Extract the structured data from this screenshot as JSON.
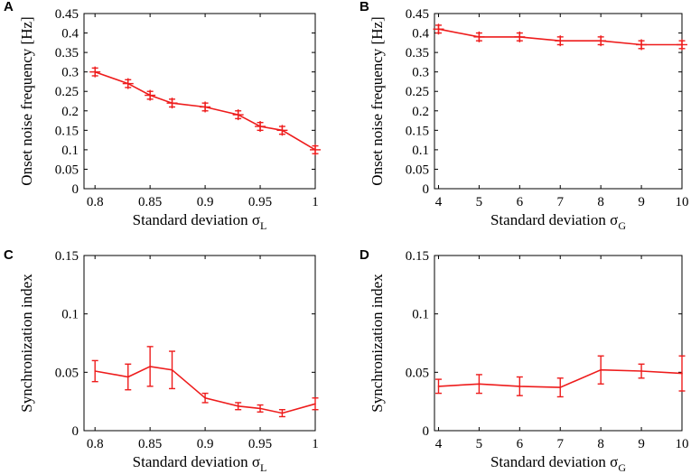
{
  "chart_data": [
    {
      "panel": "A",
      "type": "line",
      "xlabel": "Standard deviation",
      "xlabel_symbol": "σ",
      "xlabel_sub": "L",
      "ylabel": "Onset noise frequency [Hz]",
      "x": [
        0.8,
        0.83,
        0.85,
        0.87,
        0.9,
        0.93,
        0.95,
        0.97,
        1.0
      ],
      "y": [
        0.3,
        0.27,
        0.24,
        0.22,
        0.21,
        0.19,
        0.16,
        0.15,
        0.1
      ],
      "yerr": [
        0.01,
        0.01,
        0.01,
        0.01,
        0.01,
        0.01,
        0.01,
        0.01,
        0.01
      ],
      "xlim": [
        0.79,
        1.0
      ],
      "ylim": [
        0,
        0.45
      ],
      "xticks": [
        "0.8",
        "0.85",
        "0.9",
        "0.95",
        "1"
      ],
      "yticks": [
        "0",
        "0.05",
        "0.1",
        "0.15",
        "0.2",
        "0.25",
        "0.3",
        "0.35",
        "0.4",
        "0.45"
      ],
      "marker": "plus"
    },
    {
      "panel": "B",
      "type": "line",
      "xlabel": "Standard deviation",
      "xlabel_symbol": "σ",
      "xlabel_sub": "G",
      "ylabel": "Onset noise frequency [Hz]",
      "x": [
        4,
        5,
        6,
        7,
        8,
        9,
        10
      ],
      "y": [
        0.41,
        0.39,
        0.39,
        0.38,
        0.38,
        0.37,
        0.37
      ],
      "yerr": [
        0.01,
        0.01,
        0.01,
        0.01,
        0.01,
        0.01,
        0.01
      ],
      "xlim": [
        3.9,
        10
      ],
      "ylim": [
        0,
        0.45
      ],
      "xticks": [
        "4",
        "5",
        "6",
        "7",
        "8",
        "9",
        "10"
      ],
      "yticks": [
        "0",
        "0.05",
        "0.1",
        "0.15",
        "0.2",
        "0.25",
        "0.3",
        "0.35",
        "0.4",
        "0.45"
      ],
      "marker": "plus"
    },
    {
      "panel": "C",
      "type": "line",
      "xlabel": "Standard deviation",
      "xlabel_symbol": "σ",
      "xlabel_sub": "L",
      "ylabel": "Synchronization index",
      "x": [
        0.8,
        0.83,
        0.85,
        0.87,
        0.9,
        0.93,
        0.95,
        0.97,
        1.0
      ],
      "y": [
        0.051,
        0.046,
        0.055,
        0.052,
        0.028,
        0.021,
        0.019,
        0.015,
        0.023
      ],
      "yerr": [
        0.009,
        0.011,
        0.017,
        0.016,
        0.004,
        0.003,
        0.003,
        0.003,
        0.005
      ],
      "xlim": [
        0.79,
        1.0
      ],
      "ylim": [
        0,
        0.15
      ],
      "xticks": [
        "0.8",
        "0.85",
        "0.9",
        "0.95",
        "1"
      ],
      "yticks": [
        "0",
        "0.05",
        "0.1",
        "0.15"
      ],
      "marker": "none"
    },
    {
      "panel": "D",
      "type": "line",
      "xlabel": "Standard deviation",
      "xlabel_symbol": "σ",
      "xlabel_sub": "G",
      "ylabel": "Synchronization index",
      "x": [
        4,
        5,
        6,
        7,
        8,
        9,
        10
      ],
      "y": [
        0.038,
        0.04,
        0.038,
        0.037,
        0.052,
        0.051,
        0.049
      ],
      "yerr": [
        0.006,
        0.008,
        0.008,
        0.008,
        0.012,
        0.006,
        0.015
      ],
      "xlim": [
        3.9,
        10
      ],
      "ylim": [
        0,
        0.15
      ],
      "xticks": [
        "4",
        "5",
        "6",
        "7",
        "8",
        "9",
        "10"
      ],
      "yticks": [
        "0",
        "0.05",
        "0.1",
        "0.15"
      ],
      "marker": "none"
    }
  ],
  "colors": {
    "series": "#ee1c1c",
    "axes": "#000000"
  }
}
